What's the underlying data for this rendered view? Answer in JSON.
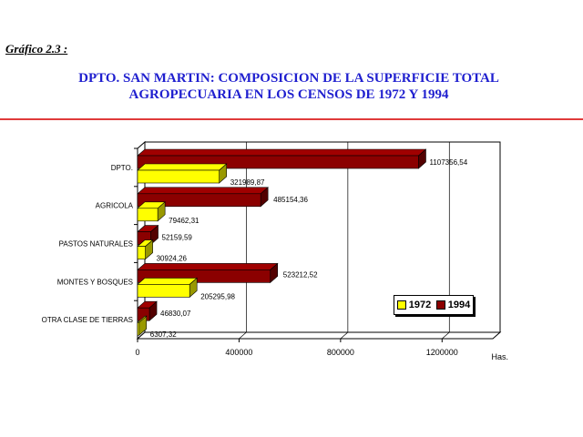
{
  "header": {
    "figure_label": "Gráfico 2.3 :",
    "title_line1": "DPTO. SAN MARTIN: COMPOSICION DE LA SUPERFICIE TOTAL",
    "title_line2": "AGROPECUARIA EN LOS CENSOS DE 1972 Y 1994"
  },
  "colors": {
    "title": "#1f1fcf",
    "divider": "#e03a3a",
    "series_1972": "#ffff00",
    "series_1994": "#8b0000"
  },
  "chart_data": {
    "type": "bar",
    "orientation": "horizontal",
    "categories": [
      "DPTO.",
      "AGRICOLA",
      "PASTOS NATURALES",
      "MONTES Y BOSQUES",
      "OTRA CLASE DE TIERRAS"
    ],
    "series": [
      {
        "name": "1972",
        "values": [
          321989.87,
          79462.31,
          30924.26,
          205295.98,
          6307.32
        ],
        "labels": [
          "321989,87",
          "79462,31",
          "30924,26",
          "205295,98",
          "6307,32"
        ]
      },
      {
        "name": "1994",
        "values": [
          1107356.54,
          485154.36,
          52159.59,
          523212.52,
          46830.07
        ],
        "labels": [
          "1107356,54",
          "485154,36",
          "52159,59",
          "523212,52",
          "46830,07"
        ]
      }
    ],
    "xlim": [
      0,
      1400000
    ],
    "xticks": [
      0,
      400000,
      800000,
      1200000
    ],
    "xtick_labels": [
      "0",
      "400000",
      "800000",
      "1200000"
    ],
    "xlabel": "Has.",
    "legend_position": "bottom-right",
    "grid": "vertical",
    "style": "3d"
  }
}
